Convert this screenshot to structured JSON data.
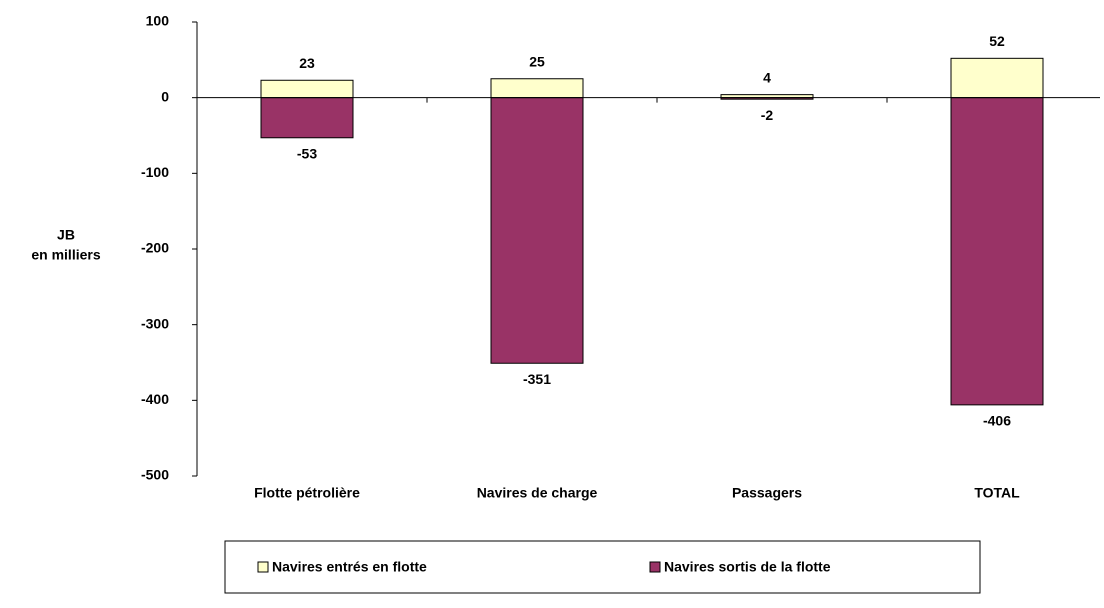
{
  "chart_data": {
    "type": "bar",
    "stacked": true,
    "ylabel": [
      "JB",
      "en milliers"
    ],
    "categories": [
      "Flotte pétrolière",
      "Navires de charge",
      "Passagers",
      "TOTAL"
    ],
    "series": [
      {
        "name": "Navires entrés en flotte",
        "color": "#ffffcc",
        "values": [
          23,
          25,
          4,
          52
        ]
      },
      {
        "name": "Navires sortis de la flotte",
        "color": "#993366",
        "values": [
          -53,
          -351,
          -2,
          -406
        ]
      }
    ],
    "ylim": [
      -500,
      100
    ],
    "yticks": [
      -500,
      -400,
      -300,
      -200,
      -100,
      0,
      100
    ],
    "grid": false
  }
}
